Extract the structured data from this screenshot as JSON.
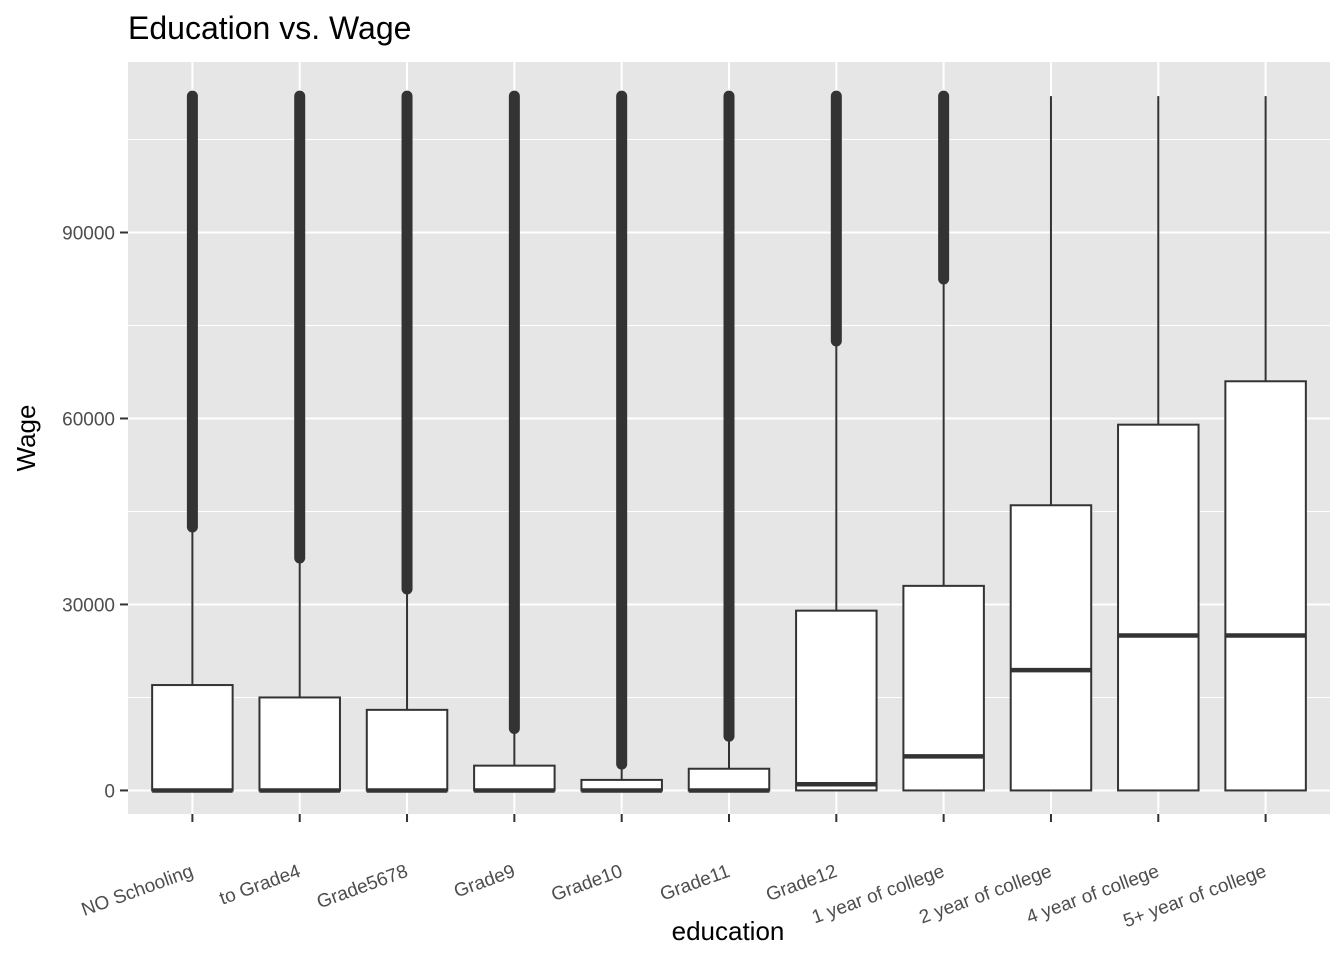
{
  "chart_data": {
    "type": "boxplot",
    "title": "Education vs. Wage",
    "xlabel": "education",
    "ylabel": "Wage",
    "ylim": [
      -3800,
      117500
    ],
    "yticks": [
      0,
      30000,
      60000,
      90000
    ],
    "grid": true,
    "legend": "none",
    "categories": [
      "NO Schooling",
      "to Grade4",
      "Grade5678",
      "Grade9",
      "Grade10",
      "Grade11",
      "Grade12",
      "1 year of college",
      "2 year of college",
      "4 year of college",
      "5+ year of college"
    ],
    "boxes": [
      {
        "q1": 0,
        "median": 0,
        "q3": 17000,
        "whisker_low": 0,
        "whisker_high": 42500,
        "outliers_from": 42500,
        "outliers_to": 112000
      },
      {
        "q1": 0,
        "median": 0,
        "q3": 15000,
        "whisker_low": 0,
        "whisker_high": 37500,
        "outliers_from": 37500,
        "outliers_to": 112000
      },
      {
        "q1": 0,
        "median": 0,
        "q3": 13000,
        "whisker_low": 0,
        "whisker_high": 32500,
        "outliers_from": 32500,
        "outliers_to": 112000
      },
      {
        "q1": 0,
        "median": 0,
        "q3": 4000,
        "whisker_low": 0,
        "whisker_high": 10000,
        "outliers_from": 10000,
        "outliers_to": 112000
      },
      {
        "q1": 0,
        "median": 0,
        "q3": 1700,
        "whisker_low": 0,
        "whisker_high": 4250,
        "outliers_from": 4250,
        "outliers_to": 112000
      },
      {
        "q1": 0,
        "median": 0,
        "q3": 3500,
        "whisker_low": 0,
        "whisker_high": 8750,
        "outliers_from": 8750,
        "outliers_to": 112000
      },
      {
        "q1": 0,
        "median": 1000,
        "q3": 29000,
        "whisker_low": 0,
        "whisker_high": 72500,
        "outliers_from": 72500,
        "outliers_to": 112000
      },
      {
        "q1": 0,
        "median": 5500,
        "q3": 33000,
        "whisker_low": 0,
        "whisker_high": 82500,
        "outliers_from": 82500,
        "outliers_to": 112000
      },
      {
        "q1": 0,
        "median": 19400,
        "q3": 46000,
        "whisker_low": 0,
        "whisker_high": 112000,
        "outliers_from": null,
        "outliers_to": null
      },
      {
        "q1": 0,
        "median": 25000,
        "q3": 59000,
        "whisker_low": 0,
        "whisker_high": 112000,
        "outliers_from": null,
        "outliers_to": null
      },
      {
        "q1": 0,
        "median": 25000,
        "q3": 66000,
        "whisker_low": 0,
        "whisker_high": 112000,
        "outliers_from": null,
        "outliers_to": null
      }
    ],
    "colors": {
      "panel_bg": "#e6e6e6",
      "grid": "#ffffff",
      "box_fill": "#ffffff",
      "stroke": "#333333",
      "outlier": "#333333",
      "tick_text": "#4d4d4d"
    }
  }
}
